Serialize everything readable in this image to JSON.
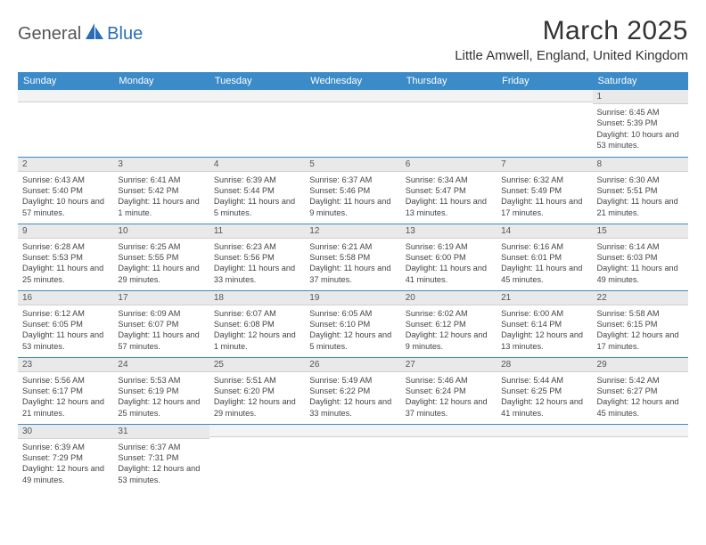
{
  "logo": {
    "part1": "General",
    "part2": "Blue"
  },
  "title": "March 2025",
  "location": "Little Amwell, England, United Kingdom",
  "colors": {
    "header_bg": "#3b8bc9",
    "header_fg": "#ffffff",
    "daynum_bg": "#e9e9e9",
    "row_border": "#3b8bc9",
    "logo_blue": "#2a6db8"
  },
  "weekdays": [
    "Sunday",
    "Monday",
    "Tuesday",
    "Wednesday",
    "Thursday",
    "Friday",
    "Saturday"
  ],
  "weeks": [
    [
      {
        "n": "",
        "sr": "",
        "ss": "",
        "dl": ""
      },
      {
        "n": "",
        "sr": "",
        "ss": "",
        "dl": ""
      },
      {
        "n": "",
        "sr": "",
        "ss": "",
        "dl": ""
      },
      {
        "n": "",
        "sr": "",
        "ss": "",
        "dl": ""
      },
      {
        "n": "",
        "sr": "",
        "ss": "",
        "dl": ""
      },
      {
        "n": "",
        "sr": "",
        "ss": "",
        "dl": ""
      },
      {
        "n": "1",
        "sr": "Sunrise: 6:45 AM",
        "ss": "Sunset: 5:39 PM",
        "dl": "Daylight: 10 hours and 53 minutes."
      }
    ],
    [
      {
        "n": "2",
        "sr": "Sunrise: 6:43 AM",
        "ss": "Sunset: 5:40 PM",
        "dl": "Daylight: 10 hours and 57 minutes."
      },
      {
        "n": "3",
        "sr": "Sunrise: 6:41 AM",
        "ss": "Sunset: 5:42 PM",
        "dl": "Daylight: 11 hours and 1 minute."
      },
      {
        "n": "4",
        "sr": "Sunrise: 6:39 AM",
        "ss": "Sunset: 5:44 PM",
        "dl": "Daylight: 11 hours and 5 minutes."
      },
      {
        "n": "5",
        "sr": "Sunrise: 6:37 AM",
        "ss": "Sunset: 5:46 PM",
        "dl": "Daylight: 11 hours and 9 minutes."
      },
      {
        "n": "6",
        "sr": "Sunrise: 6:34 AM",
        "ss": "Sunset: 5:47 PM",
        "dl": "Daylight: 11 hours and 13 minutes."
      },
      {
        "n": "7",
        "sr": "Sunrise: 6:32 AM",
        "ss": "Sunset: 5:49 PM",
        "dl": "Daylight: 11 hours and 17 minutes."
      },
      {
        "n": "8",
        "sr": "Sunrise: 6:30 AM",
        "ss": "Sunset: 5:51 PM",
        "dl": "Daylight: 11 hours and 21 minutes."
      }
    ],
    [
      {
        "n": "9",
        "sr": "Sunrise: 6:28 AM",
        "ss": "Sunset: 5:53 PM",
        "dl": "Daylight: 11 hours and 25 minutes."
      },
      {
        "n": "10",
        "sr": "Sunrise: 6:25 AM",
        "ss": "Sunset: 5:55 PM",
        "dl": "Daylight: 11 hours and 29 minutes."
      },
      {
        "n": "11",
        "sr": "Sunrise: 6:23 AM",
        "ss": "Sunset: 5:56 PM",
        "dl": "Daylight: 11 hours and 33 minutes."
      },
      {
        "n": "12",
        "sr": "Sunrise: 6:21 AM",
        "ss": "Sunset: 5:58 PM",
        "dl": "Daylight: 11 hours and 37 minutes."
      },
      {
        "n": "13",
        "sr": "Sunrise: 6:19 AM",
        "ss": "Sunset: 6:00 PM",
        "dl": "Daylight: 11 hours and 41 minutes."
      },
      {
        "n": "14",
        "sr": "Sunrise: 6:16 AM",
        "ss": "Sunset: 6:01 PM",
        "dl": "Daylight: 11 hours and 45 minutes."
      },
      {
        "n": "15",
        "sr": "Sunrise: 6:14 AM",
        "ss": "Sunset: 6:03 PM",
        "dl": "Daylight: 11 hours and 49 minutes."
      }
    ],
    [
      {
        "n": "16",
        "sr": "Sunrise: 6:12 AM",
        "ss": "Sunset: 6:05 PM",
        "dl": "Daylight: 11 hours and 53 minutes."
      },
      {
        "n": "17",
        "sr": "Sunrise: 6:09 AM",
        "ss": "Sunset: 6:07 PM",
        "dl": "Daylight: 11 hours and 57 minutes."
      },
      {
        "n": "18",
        "sr": "Sunrise: 6:07 AM",
        "ss": "Sunset: 6:08 PM",
        "dl": "Daylight: 12 hours and 1 minute."
      },
      {
        "n": "19",
        "sr": "Sunrise: 6:05 AM",
        "ss": "Sunset: 6:10 PM",
        "dl": "Daylight: 12 hours and 5 minutes."
      },
      {
        "n": "20",
        "sr": "Sunrise: 6:02 AM",
        "ss": "Sunset: 6:12 PM",
        "dl": "Daylight: 12 hours and 9 minutes."
      },
      {
        "n": "21",
        "sr": "Sunrise: 6:00 AM",
        "ss": "Sunset: 6:14 PM",
        "dl": "Daylight: 12 hours and 13 minutes."
      },
      {
        "n": "22",
        "sr": "Sunrise: 5:58 AM",
        "ss": "Sunset: 6:15 PM",
        "dl": "Daylight: 12 hours and 17 minutes."
      }
    ],
    [
      {
        "n": "23",
        "sr": "Sunrise: 5:56 AM",
        "ss": "Sunset: 6:17 PM",
        "dl": "Daylight: 12 hours and 21 minutes."
      },
      {
        "n": "24",
        "sr": "Sunrise: 5:53 AM",
        "ss": "Sunset: 6:19 PM",
        "dl": "Daylight: 12 hours and 25 minutes."
      },
      {
        "n": "25",
        "sr": "Sunrise: 5:51 AM",
        "ss": "Sunset: 6:20 PM",
        "dl": "Daylight: 12 hours and 29 minutes."
      },
      {
        "n": "26",
        "sr": "Sunrise: 5:49 AM",
        "ss": "Sunset: 6:22 PM",
        "dl": "Daylight: 12 hours and 33 minutes."
      },
      {
        "n": "27",
        "sr": "Sunrise: 5:46 AM",
        "ss": "Sunset: 6:24 PM",
        "dl": "Daylight: 12 hours and 37 minutes."
      },
      {
        "n": "28",
        "sr": "Sunrise: 5:44 AM",
        "ss": "Sunset: 6:25 PM",
        "dl": "Daylight: 12 hours and 41 minutes."
      },
      {
        "n": "29",
        "sr": "Sunrise: 5:42 AM",
        "ss": "Sunset: 6:27 PM",
        "dl": "Daylight: 12 hours and 45 minutes."
      }
    ],
    [
      {
        "n": "30",
        "sr": "Sunrise: 6:39 AM",
        "ss": "Sunset: 7:29 PM",
        "dl": "Daylight: 12 hours and 49 minutes."
      },
      {
        "n": "31",
        "sr": "Sunrise: 6:37 AM",
        "ss": "Sunset: 7:31 PM",
        "dl": "Daylight: 12 hours and 53 minutes."
      },
      {
        "n": "",
        "sr": "",
        "ss": "",
        "dl": ""
      },
      {
        "n": "",
        "sr": "",
        "ss": "",
        "dl": ""
      },
      {
        "n": "",
        "sr": "",
        "ss": "",
        "dl": ""
      },
      {
        "n": "",
        "sr": "",
        "ss": "",
        "dl": ""
      },
      {
        "n": "",
        "sr": "",
        "ss": "",
        "dl": ""
      }
    ]
  ]
}
